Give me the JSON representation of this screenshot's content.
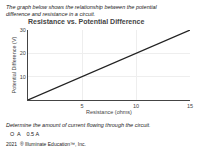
{
  "chart_data": {
    "type": "line",
    "title": "Resistance vs. Potential Difference",
    "xlabel": "Resistance (ohms)",
    "ylabel": "Potential Difference (V)",
    "x": [
      0,
      15
    ],
    "values": [
      0,
      30
    ],
    "color": "#222222",
    "xlim": [
      0,
      15
    ],
    "ylim": [
      0,
      30
    ],
    "xticks": [
      5,
      10,
      15
    ],
    "yticks": [
      10,
      20,
      30
    ],
    "grid": true,
    "annotations": [
      "The graph below shows the relationship between the potential difference and resistance in a circuit.",
      "Determine the amount of current flowing through the circuit.",
      "O  A    0.5 A",
      "2021  ® Illuminate Education™, Inc."
    ]
  }
}
